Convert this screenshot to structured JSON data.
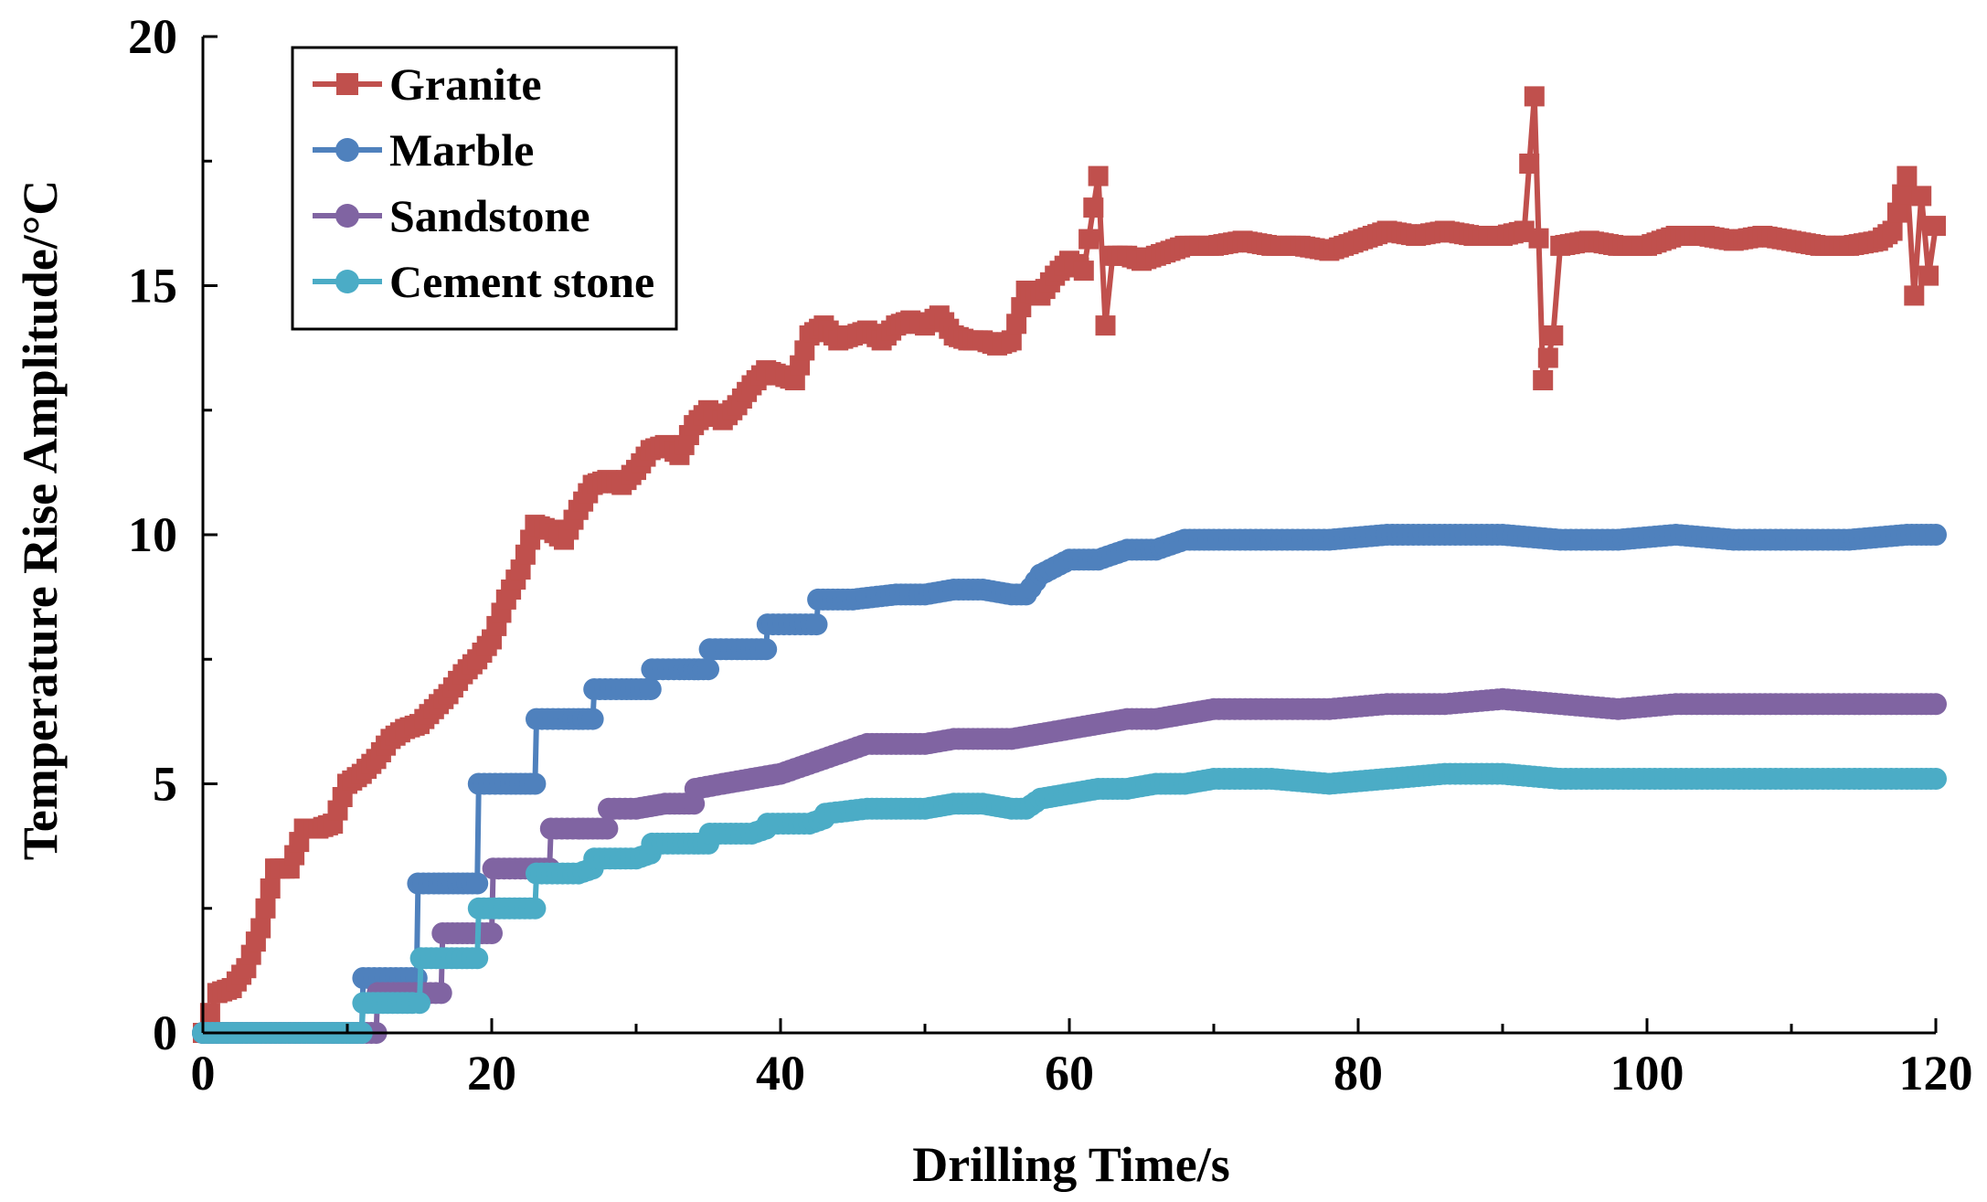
{
  "chart_data": {
    "type": "line",
    "xlabel": "Drilling Time/s",
    "ylabel": "Temperature Rise Amplitude/°C",
    "xlim": [
      0,
      120
    ],
    "ylim": [
      0,
      20
    ],
    "xticks": [
      0,
      20,
      40,
      60,
      80,
      100,
      120
    ],
    "yticks": [
      0,
      5,
      10,
      15,
      20
    ],
    "x_minor_step": 10,
    "y_minor_step": 2.5,
    "grid": false,
    "legend_position": "top-left",
    "series": [
      {
        "name": "Granite",
        "color": "#C0504D",
        "marker": "square",
        "x": [
          0,
          0.5,
          1,
          2,
          3,
          4,
          5,
          6,
          7,
          8,
          9,
          10,
          11,
          12,
          13,
          14,
          15,
          16,
          17,
          18,
          19,
          20,
          21,
          22,
          23,
          24,
          25,
          26,
          27,
          28,
          29,
          30,
          31,
          32,
          33,
          34,
          35,
          36,
          37,
          38,
          39,
          40,
          41,
          42,
          43,
          44,
          45,
          46,
          47,
          48,
          49,
          50,
          51,
          52,
          53,
          54,
          55,
          56,
          57,
          58,
          59,
          60,
          61,
          62,
          62.5,
          63,
          64,
          65,
          66,
          67,
          68,
          70,
          72,
          74,
          76,
          78,
          80,
          82,
          84,
          86,
          88,
          90,
          91.5,
          92.2,
          92.8,
          93.5,
          94,
          96,
          98,
          100,
          102,
          104,
          106,
          108,
          110,
          112,
          114,
          116,
          117,
          118,
          118.5,
          119,
          119.5,
          120
        ],
        "values": [
          0,
          0.4,
          0.8,
          0.9,
          1.3,
          2.1,
          3.3,
          3.3,
          4.1,
          4.1,
          4.2,
          5.0,
          5.2,
          5.5,
          5.9,
          6.1,
          6.2,
          6.5,
          6.8,
          7.2,
          7.5,
          7.9,
          8.7,
          9.3,
          10.2,
          10.1,
          9.9,
          10.5,
          11.0,
          11.1,
          11.0,
          11.3,
          11.7,
          11.8,
          11.6,
          12.2,
          12.5,
          12.3,
          12.6,
          13.0,
          13.3,
          13.2,
          13.1,
          14.0,
          14.2,
          13.9,
          14.0,
          14.1,
          13.9,
          14.2,
          14.3,
          14.2,
          14.4,
          14.0,
          13.9,
          13.9,
          13.8,
          13.9,
          14.9,
          14.8,
          15.2,
          15.5,
          15.3,
          17.2,
          14.2,
          15.6,
          15.6,
          15.5,
          15.6,
          15.7,
          15.8,
          15.8,
          15.9,
          15.8,
          15.8,
          15.7,
          15.9,
          16.1,
          16.0,
          16.1,
          16.0,
          16.0,
          16.1,
          18.8,
          13.1,
          14.0,
          15.8,
          15.9,
          15.8,
          15.8,
          16.0,
          16.0,
          15.9,
          16.0,
          15.9,
          15.8,
          15.8,
          15.9,
          16.1,
          17.2,
          14.8,
          16.8,
          15.2,
          16.2
        ]
      },
      {
        "name": "Marble",
        "color": "#4F81BD",
        "marker": "circle",
        "x": [
          0,
          2,
          4,
          6,
          8,
          10,
          11,
          11.1,
          13,
          14.8,
          14.9,
          16,
          18,
          19,
          19.1,
          21,
          23,
          23.1,
          25,
          27,
          27.1,
          29,
          31,
          31.1,
          33,
          35,
          35.1,
          37,
          39,
          39.1,
          41,
          42.5,
          42.6,
          45,
          48,
          50,
          52,
          54,
          56,
          57,
          58,
          60,
          62,
          64,
          66,
          68,
          70,
          74,
          78,
          82,
          86,
          90,
          94,
          98,
          102,
          106,
          110,
          114,
          118,
          120
        ],
        "values": [
          0,
          0,
          0,
          0,
          0,
          0,
          0,
          1.1,
          1.1,
          1.1,
          3.0,
          3.0,
          3.0,
          3.0,
          5.0,
          5.0,
          5.0,
          6.3,
          6.3,
          6.3,
          6.9,
          6.9,
          6.9,
          7.3,
          7.3,
          7.3,
          7.7,
          7.7,
          7.7,
          8.2,
          8.2,
          8.2,
          8.7,
          8.7,
          8.8,
          8.8,
          8.9,
          8.9,
          8.8,
          8.8,
          9.2,
          9.5,
          9.5,
          9.7,
          9.7,
          9.9,
          9.9,
          9.9,
          9.9,
          10.0,
          10.0,
          10.0,
          9.9,
          9.9,
          10.0,
          9.9,
          9.9,
          9.9,
          10.0,
          10.0
        ]
      },
      {
        "name": "Sandstone",
        "color": "#8064A2",
        "marker": "circle",
        "x": [
          0,
          2,
          4,
          6,
          8,
          10,
          12,
          12.1,
          15,
          16.5,
          16.6,
          19,
          20,
          20.1,
          22,
          24,
          24.1,
          26,
          28,
          28.1,
          30,
          32,
          34,
          34.1,
          36,
          38,
          40,
          42,
          44,
          46,
          48,
          50,
          52,
          54,
          56,
          58,
          60,
          62,
          64,
          66,
          68,
          70,
          74,
          78,
          82,
          86,
          90,
          94,
          98,
          102,
          106,
          110,
          114,
          118,
          120
        ],
        "values": [
          0,
          0,
          0,
          0,
          0,
          0,
          0,
          0.8,
          0.8,
          0.8,
          2.0,
          2.0,
          2.0,
          3.3,
          3.3,
          3.3,
          4.1,
          4.1,
          4.1,
          4.5,
          4.5,
          4.6,
          4.6,
          4.9,
          5.0,
          5.1,
          5.2,
          5.4,
          5.6,
          5.8,
          5.8,
          5.8,
          5.9,
          5.9,
          5.9,
          6.0,
          6.1,
          6.2,
          6.3,
          6.3,
          6.4,
          6.5,
          6.5,
          6.5,
          6.6,
          6.6,
          6.7,
          6.6,
          6.5,
          6.6,
          6.6,
          6.6,
          6.6,
          6.6,
          6.6
        ]
      },
      {
        "name": "Cement stone",
        "color": "#4BACC6",
        "marker": "circle",
        "x": [
          0,
          2,
          4,
          6,
          8,
          10,
          11,
          11.1,
          14.5,
          15,
          15.1,
          19,
          19.1,
          23,
          23.1,
          26,
          27,
          27.1,
          30,
          31,
          31.1,
          34,
          35,
          35.1,
          38,
          39,
          39.1,
          42,
          43,
          43.1,
          46,
          48,
          50,
          52,
          54,
          56,
          57,
          58,
          60,
          62,
          64,
          66,
          68,
          70,
          74,
          78,
          82,
          86,
          90,
          94,
          98,
          102,
          106,
          110,
          114,
          118,
          120
        ],
        "values": [
          0,
          0,
          0,
          0,
          0,
          0,
          0,
          0.6,
          0.6,
          0.6,
          1.5,
          1.5,
          2.5,
          2.5,
          3.2,
          3.2,
          3.3,
          3.5,
          3.5,
          3.6,
          3.8,
          3.8,
          3.8,
          4.0,
          4.0,
          4.1,
          4.2,
          4.2,
          4.3,
          4.4,
          4.5,
          4.5,
          4.5,
          4.6,
          4.6,
          4.5,
          4.5,
          4.7,
          4.8,
          4.9,
          4.9,
          5.0,
          5.0,
          5.1,
          5.1,
          5.0,
          5.1,
          5.2,
          5.2,
          5.1,
          5.1,
          5.1,
          5.1,
          5.1,
          5.1,
          5.1,
          5.1
        ]
      }
    ]
  }
}
